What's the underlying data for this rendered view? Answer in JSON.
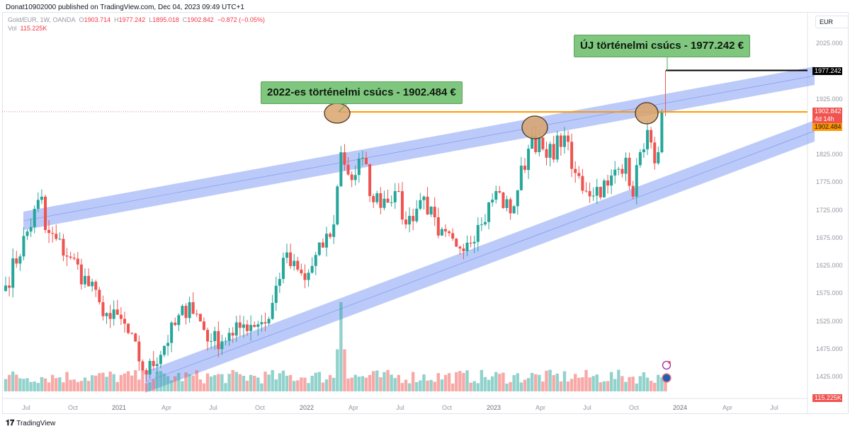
{
  "caption": "Donat10902000 published on TradingView.com, Dec 04, 2023 09:49 UTC+1",
  "legend": {
    "symbol": "Gold/EUR, 1W, OANDA",
    "open_label": "O",
    "open": "1903.714",
    "high_label": "H",
    "high": "1977.242",
    "low_label": "L",
    "low": "1895.018",
    "close_label": "C",
    "close": "1902.842",
    "change": "−0.872 (−0.05%)",
    "vol_label": "Vol",
    "vol": "115.225K"
  },
  "currency_button": "EUR",
  "price_tags": {
    "ath_new": "1977.242",
    "last": "1902.842",
    "countdown": "4d 14h",
    "ath_2022": "1902.484",
    "volume": "115.225K"
  },
  "callouts": {
    "ath_2022": "2022-es történelmi csúcs - 1902.484 €",
    "ath_new": "ÚJ történelmi csúcs - 1977.242 €"
  },
  "footer": "TradingView",
  "colors": {
    "up": "#26a69a",
    "down": "#ef5350",
    "channel": "#8ea6f5",
    "orange": "#ff9800",
    "callout": "#7fc77f"
  },
  "chart_data": {
    "type": "candlestick",
    "title": "Gold/EUR, 1W, OANDA",
    "y_ticks": [
      "2025.000",
      "1925.000",
      "1825.000",
      "1775.000",
      "1725.000",
      "1675.000",
      "1625.000",
      "1575.000",
      "1525.000",
      "1475.000",
      "1425.000"
    ],
    "x_ticks": [
      "Jul",
      "Oct",
      "2021",
      "Apr",
      "Jul",
      "Oct",
      "2022",
      "Apr",
      "Jul",
      "Oct",
      "2023",
      "Apr",
      "Jul",
      "Oct",
      "2024",
      "Apr",
      "Jul"
    ],
    "ylim": [
      1400,
      2060
    ],
    "close_keypoints_by_week": [
      [
        0,
        1590
      ],
      [
        10,
        1750
      ],
      [
        11,
        1690
      ],
      [
        18,
        1640
      ],
      [
        26,
        1560
      ],
      [
        29,
        1530
      ],
      [
        32,
        1530
      ],
      [
        39,
        1430
      ],
      [
        51,
        1560
      ],
      [
        57,
        1490
      ],
      [
        63,
        1500
      ],
      [
        66,
        1520
      ],
      [
        73,
        1530
      ],
      [
        77,
        1640
      ],
      [
        83,
        1600
      ],
      [
        91,
        1700
      ],
      [
        93,
        1830
      ],
      [
        96,
        1780
      ],
      [
        99,
        1820
      ],
      [
        102,
        1740
      ],
      [
        108,
        1760
      ],
      [
        111,
        1700
      ],
      [
        116,
        1750
      ],
      [
        120,
        1680
      ],
      [
        125,
        1660
      ],
      [
        132,
        1700
      ],
      [
        136,
        1760
      ],
      [
        140,
        1720
      ],
      [
        146,
        1860
      ],
      [
        150,
        1820
      ],
      [
        155,
        1860
      ],
      [
        157,
        1800
      ],
      [
        161,
        1760
      ],
      [
        167,
        1770
      ],
      [
        172,
        1820
      ],
      [
        174,
        1750
      ],
      [
        176,
        1830
      ],
      [
        178,
        1870
      ],
      [
        180,
        1810
      ],
      [
        181,
        1830
      ],
      [
        182,
        1903.714
      ]
    ],
    "last_candle": {
      "open": 1903.714,
      "high": 1977.242,
      "low": 1895.018,
      "close": 1902.842
    },
    "volume_spike_week": 93,
    "last_volume_k": 115.225,
    "horizontal_levels": [
      1902.484,
      1977.242
    ]
  }
}
